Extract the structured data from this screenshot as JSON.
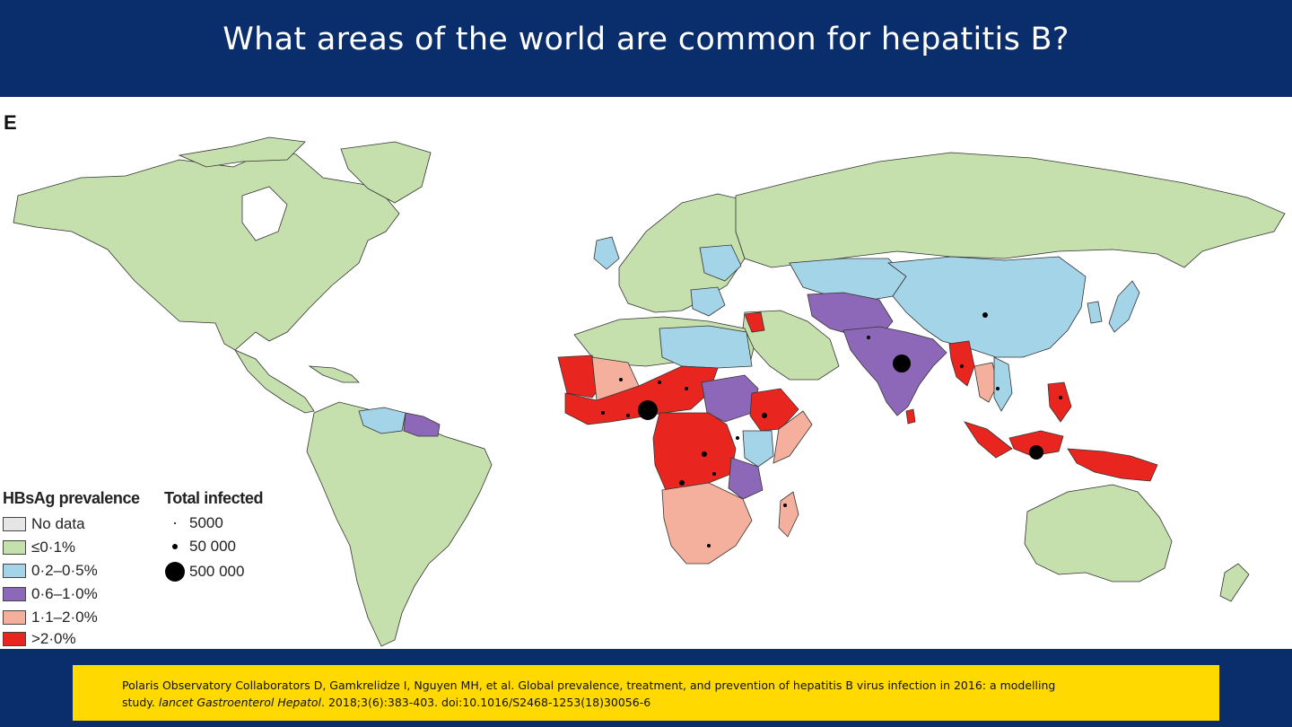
{
  "header": {
    "title": "What areas of the world  are common for hepatitis B?"
  },
  "map": {
    "panel_label": "E",
    "legend": {
      "prevalence_title": "HBsAg prevalence",
      "prevalence_items": [
        {
          "label": "No data",
          "color": "#e6e6e6"
        },
        {
          "label": "≤0·1%",
          "color": "#c5dfad"
        },
        {
          "label": "0·2–0·5%",
          "color": "#a4d4e8"
        },
        {
          "label": "0·6–1·0%",
          "color": "#8e68b8"
        },
        {
          "label": "1·1–2·0%",
          "color": "#f4b09c"
        },
        {
          "label": ">2·0%",
          "color": "#e8261f"
        }
      ],
      "infected_title": "Total infected",
      "infected_items": [
        {
          "label": "5000"
        },
        {
          "label": "50 000"
        },
        {
          "label": "500 000"
        }
      ]
    }
  },
  "citation": {
    "line1": "Polaris Observatory Collaborators D, Gamkrelidze I, Nguyen MH, et al. Global prevalence, treatment, and prevention of hepatitis B virus infection in 2016: a modelling",
    "line2_prefix": "study. ",
    "journal": "lancet Gastroenterol Hepatol",
    "line2_suffix": ". 2018;3(6):383-403. doi:10.1016/S2468-1253(18)30056-6"
  }
}
